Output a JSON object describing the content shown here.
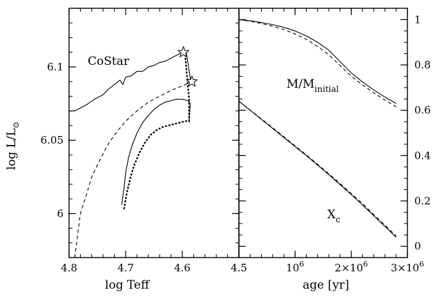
{
  "chart_data": [
    {
      "type": "line",
      "panel": "left",
      "xlabel": "log Teff",
      "ylabel": "log L/L",
      "ylabel_symbol": "⊙",
      "xlim": [
        4.8,
        4.5
      ],
      "ylim": [
        5.97,
        6.14
      ],
      "x_ticks": [
        4.8,
        4.7,
        4.6,
        4.5
      ],
      "x_tick_labels": [
        "4.8",
        "4.7",
        "4.6",
        "4.5"
      ],
      "y_ticks": [
        6.0,
        6.05,
        6.1
      ],
      "y_tick_labels": [
        "6",
        "6.05",
        "6.1"
      ],
      "annotation": "CoStar",
      "series": [
        {
          "style": "solid",
          "x": [
            4.8,
            4.79,
            4.78,
            4.77,
            4.755,
            4.74,
            4.73,
            4.72,
            4.71,
            4.705,
            4.7,
            4.69,
            4.68,
            4.67,
            4.66,
            4.65,
            4.64,
            4.63,
            4.62,
            4.61,
            4.6,
            4.592
          ],
          "y": [
            6.07,
            6.07,
            6.072,
            6.074,
            6.078,
            6.081,
            6.085,
            6.088,
            6.091,
            6.088,
            6.093,
            6.094,
            6.097,
            6.097,
            6.1,
            6.101,
            6.103,
            6.104,
            6.106,
            6.108,
            6.11,
            6.111
          ]
        },
        {
          "style": "solid",
          "x": [
            4.707,
            4.703,
            4.7,
            4.695,
            4.69,
            4.68,
            4.67,
            4.66,
            4.65,
            4.64,
            4.63,
            4.62,
            4.61,
            4.6,
            4.59,
            4.586,
            4.588
          ],
          "y": [
            6.006,
            6.017,
            6.028,
            6.038,
            6.045,
            6.055,
            6.062,
            6.067,
            6.071,
            6.074,
            6.076,
            6.077,
            6.078,
            6.078,
            6.077,
            6.075,
            6.062
          ]
        },
        {
          "style": "dashed",
          "x": [
            4.79,
            4.785,
            4.78,
            4.77,
            4.76,
            4.745,
            4.73,
            4.715,
            4.7,
            4.68,
            4.66,
            4.64,
            4.62,
            4.6,
            4.583
          ],
          "y": [
            5.97,
            5.985,
            6.0,
            6.012,
            6.025,
            6.037,
            6.048,
            6.056,
            6.063,
            6.07,
            6.076,
            6.08,
            6.084,
            6.087,
            6.09
          ]
        },
        {
          "style": "dashed-thick",
          "x": [
            4.703,
            4.698,
            4.692,
            4.685,
            4.675,
            4.665,
            4.655,
            4.645,
            4.635,
            4.625,
            4.615,
            4.605,
            4.595,
            4.588,
            4.588,
            4.595
          ],
          "y": [
            6.003,
            6.014,
            6.024,
            6.033,
            6.042,
            6.049,
            6.054,
            6.057,
            6.059,
            6.06,
            6.061,
            6.062,
            6.063,
            6.063,
            6.078,
            6.108
          ]
        },
        {
          "style": "solid",
          "x": [
            4.585,
            4.593
          ],
          "y": [
            6.09,
            6.11
          ]
        }
      ],
      "markers": [
        {
          "shape": "star",
          "x": 4.598,
          "y": 6.11
        },
        {
          "shape": "star",
          "x": 4.583,
          "y": 6.09
        }
      ]
    },
    {
      "type": "line",
      "panel": "right",
      "xlabel": "age [yr]",
      "xlim": [
        0,
        3000000
      ],
      "ylim": [
        -0.05,
        1.05
      ],
      "x_ticks": [
        1000000,
        2000000,
        3000000
      ],
      "x_tick_labels": [
        {
          "base": "10",
          "exp": "6"
        },
        {
          "base": "2×10",
          "exp": "6"
        },
        {
          "base": "3×10",
          "exp": "6"
        }
      ],
      "y_ticks": [
        0,
        0.2,
        0.4,
        0.6,
        0.8,
        1.0
      ],
      "y_tick_labels": [
        "0",
        "0.2",
        "0.4",
        "0.6",
        "0.8",
        "1"
      ],
      "annotations": [
        {
          "base": "M/M",
          "sub": "initial"
        },
        {
          "base": "X",
          "sub": "c"
        }
      ],
      "series": [
        {
          "style": "solid",
          "x": [
            0,
            200000,
            400000,
            600000,
            800000,
            1000000,
            1200000,
            1400000,
            1600000,
            1800000,
            2000000,
            2200000,
            2400000,
            2600000,
            2800000
          ],
          "y": [
            1.0,
            0.995,
            0.987,
            0.978,
            0.966,
            0.95,
            0.928,
            0.9,
            0.865,
            0.815,
            0.765,
            0.725,
            0.69,
            0.658,
            0.63
          ]
        },
        {
          "style": "dashed",
          "x": [
            0,
            200000,
            400000,
            600000,
            800000,
            1000000,
            1200000,
            1400000,
            1600000,
            1800000,
            2000000,
            2200000,
            2400000,
            2600000,
            2800000
          ],
          "y": [
            1.0,
            0.993,
            0.983,
            0.971,
            0.956,
            0.937,
            0.913,
            0.882,
            0.845,
            0.798,
            0.75,
            0.712,
            0.677,
            0.645,
            0.615
          ]
        },
        {
          "style": "solid",
          "x": [
            0,
            200000,
            400000,
            600000,
            800000,
            1000000,
            1200000,
            1400000,
            1600000,
            1800000,
            2000000,
            2200000,
            2400000,
            2600000,
            2800000
          ],
          "y": [
            0.64,
            0.6,
            0.56,
            0.52,
            0.48,
            0.44,
            0.4,
            0.358,
            0.316,
            0.272,
            0.228,
            0.182,
            0.135,
            0.087,
            0.04
          ]
        },
        {
          "style": "dashed",
          "x": [
            0,
            200000,
            400000,
            600000,
            800000,
            1000000,
            1200000,
            1400000,
            1600000,
            1800000,
            2000000,
            2200000,
            2400000,
            2600000,
            2800000
          ],
          "y": [
            0.64,
            0.601,
            0.562,
            0.523,
            0.483,
            0.443,
            0.403,
            0.362,
            0.32,
            0.277,
            0.233,
            0.188,
            0.14,
            0.093,
            0.045
          ]
        }
      ]
    }
  ]
}
